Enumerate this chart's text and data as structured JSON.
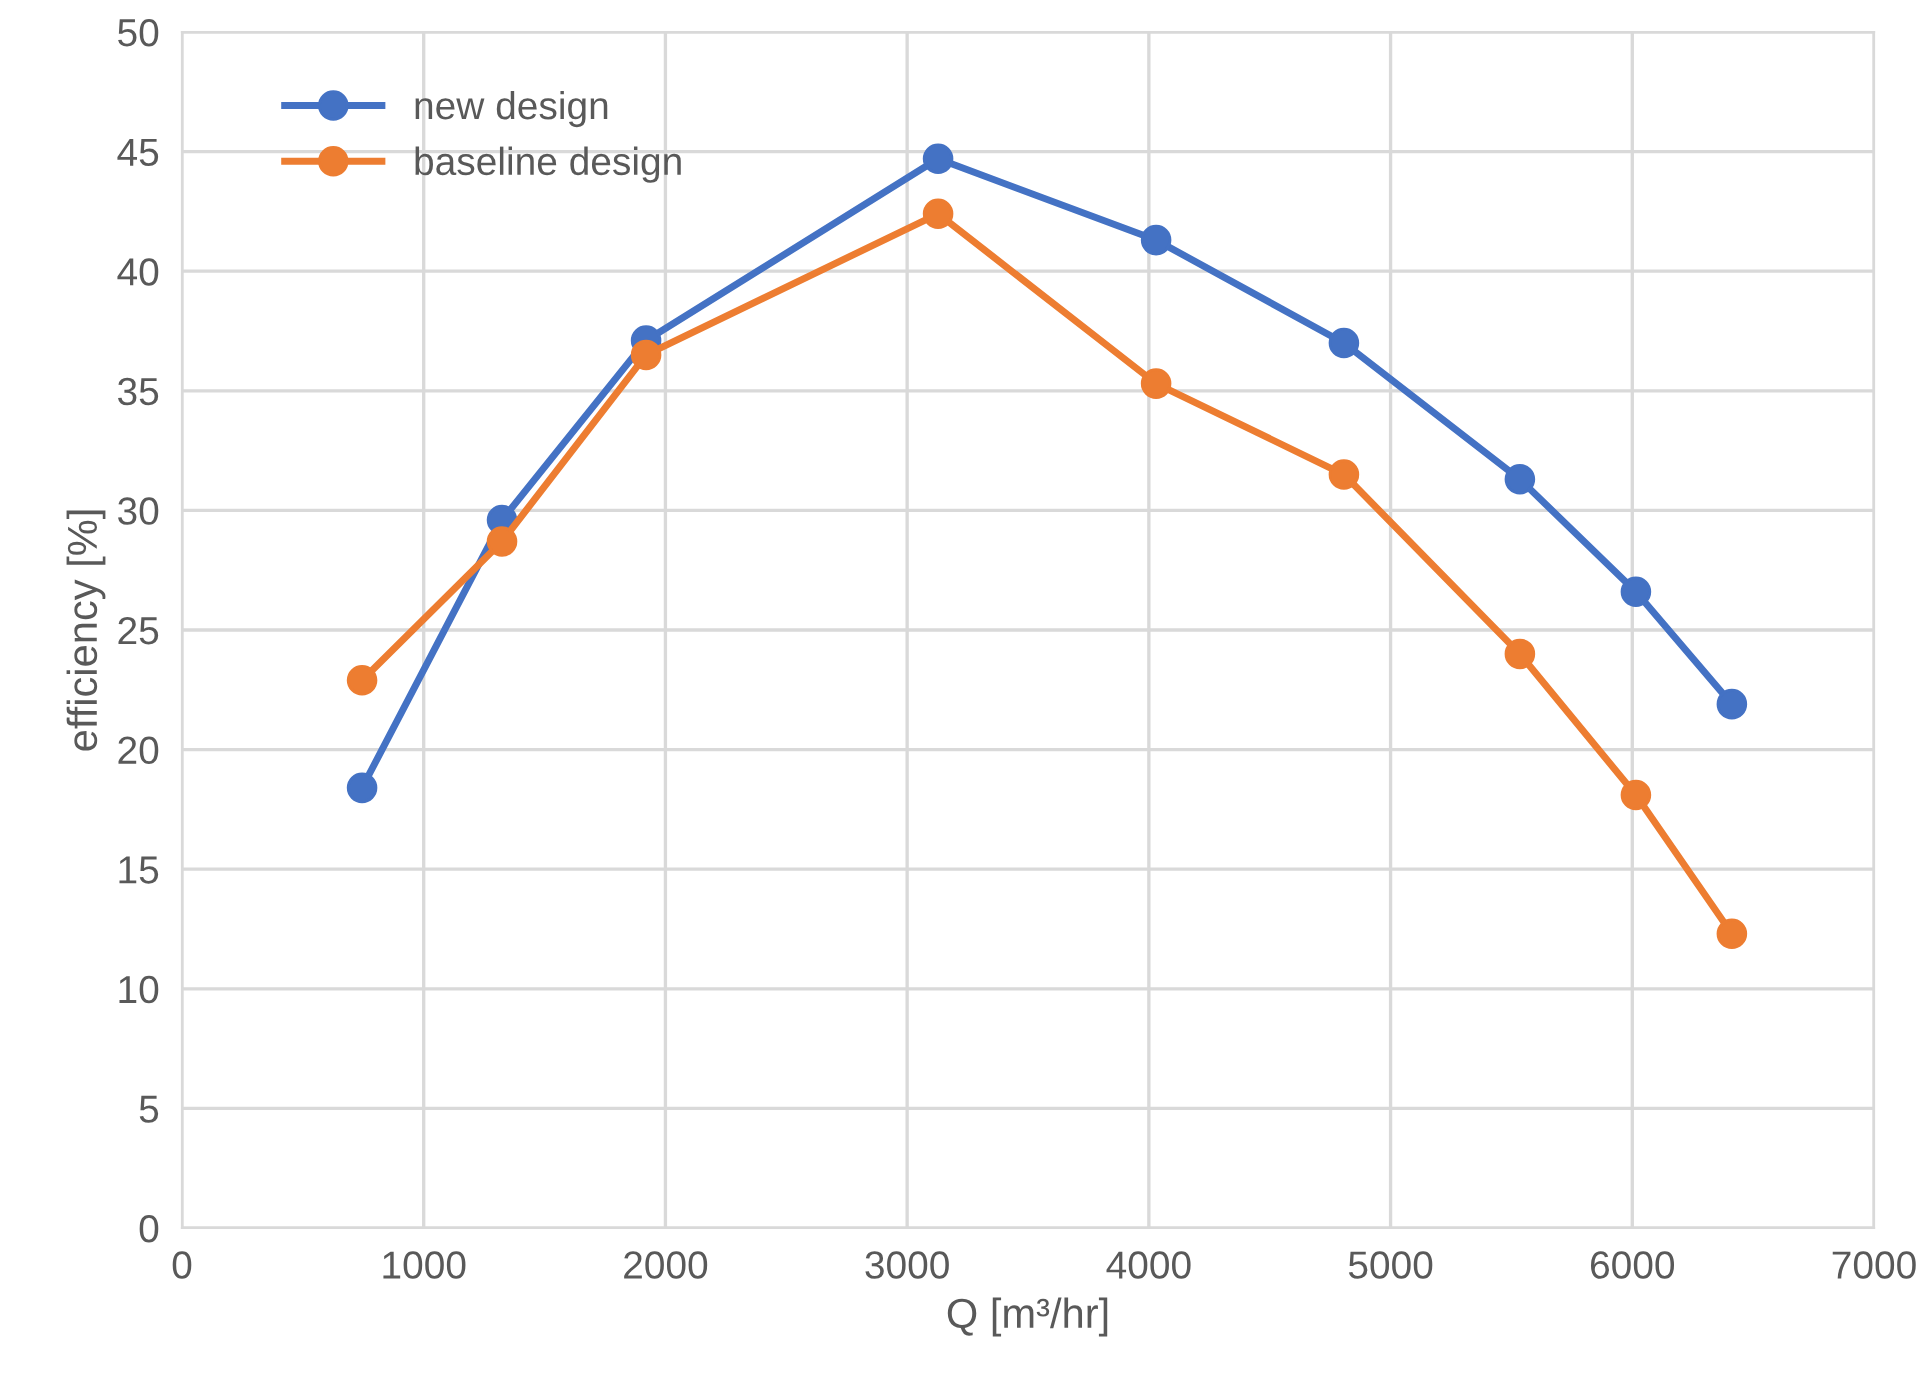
{
  "chart_data": {
    "type": "line",
    "xlabel": "Q [m³/hr]",
    "ylabel": "efficiency [%]",
    "x": [
      745,
      1324,
      1920,
      3128,
      4030,
      4807,
      5535,
      6015,
      6412
    ],
    "series": [
      {
        "name": "new design",
        "color": "#4472c4",
        "values": [
          18.4,
          29.6,
          37.1,
          44.7,
          41.3,
          37.0,
          31.3,
          26.6,
          21.9
        ]
      },
      {
        "name": "baseline design",
        "color": "#ed7d31",
        "values": [
          22.9,
          28.7,
          36.5,
          42.4,
          35.3,
          31.5,
          24.0,
          18.1,
          12.3
        ]
      }
    ],
    "xlim": [
      0,
      7000
    ],
    "xticks": [
      0,
      1000,
      2000,
      3000,
      4000,
      5000,
      6000,
      7000
    ],
    "ylim": [
      0,
      50
    ],
    "yticks": [
      0,
      5,
      10,
      15,
      20,
      25,
      30,
      35,
      40,
      45,
      50
    ],
    "grid": true,
    "legend": "top left",
    "marker": "circle",
    "line_style": "solid"
  }
}
